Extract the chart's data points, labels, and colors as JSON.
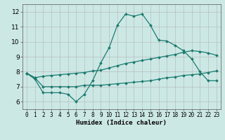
{
  "xlabel": "Humidex (Indice chaleur)",
  "background_color": "#cce8e5",
  "grid_color": "#b0b0b0",
  "line_color": "#1a7a6e",
  "x_ticks": [
    0,
    1,
    2,
    3,
    4,
    5,
    6,
    7,
    8,
    9,
    10,
    11,
    12,
    13,
    14,
    15,
    16,
    17,
    18,
    19,
    20,
    21,
    22,
    23
  ],
  "y_ticks": [
    6,
    7,
    8,
    9,
    10,
    11,
    12
  ],
  "ylim": [
    5.5,
    12.5
  ],
  "xlim": [
    -0.5,
    23.5
  ],
  "line1_x": [
    0,
    1,
    2,
    3,
    4,
    5,
    6,
    7,
    8,
    9,
    10,
    11,
    12,
    13,
    14,
    15,
    16,
    17,
    18,
    19,
    20,
    21,
    22,
    23
  ],
  "line1_y": [
    7.9,
    7.5,
    6.6,
    6.6,
    6.6,
    6.5,
    6.0,
    6.5,
    7.4,
    8.6,
    9.6,
    11.1,
    11.85,
    11.7,
    11.85,
    11.1,
    10.1,
    10.05,
    9.75,
    9.4,
    8.85,
    8.0,
    7.4,
    7.4
  ],
  "line2_x": [
    0,
    1,
    2,
    3,
    4,
    5,
    6,
    7,
    8,
    9,
    10,
    11,
    12,
    13,
    14,
    15,
    16,
    17,
    18,
    19,
    20,
    21,
    22,
    23
  ],
  "line2_y": [
    7.9,
    7.6,
    7.0,
    7.0,
    7.0,
    7.0,
    7.0,
    7.1,
    7.1,
    7.1,
    7.15,
    7.2,
    7.25,
    7.3,
    7.35,
    7.4,
    7.5,
    7.6,
    7.65,
    7.75,
    7.8,
    7.85,
    7.95,
    8.05
  ],
  "line3_x": [
    0,
    1,
    2,
    3,
    4,
    5,
    6,
    7,
    8,
    9,
    10,
    11,
    12,
    13,
    14,
    15,
    16,
    17,
    18,
    19,
    20,
    21,
    22,
    23
  ],
  "line3_y": [
    7.9,
    7.6,
    7.7,
    7.75,
    7.8,
    7.85,
    7.9,
    7.95,
    8.05,
    8.1,
    8.25,
    8.4,
    8.55,
    8.65,
    8.75,
    8.85,
    8.95,
    9.05,
    9.15,
    9.3,
    9.4,
    9.35,
    9.25,
    9.1
  ]
}
